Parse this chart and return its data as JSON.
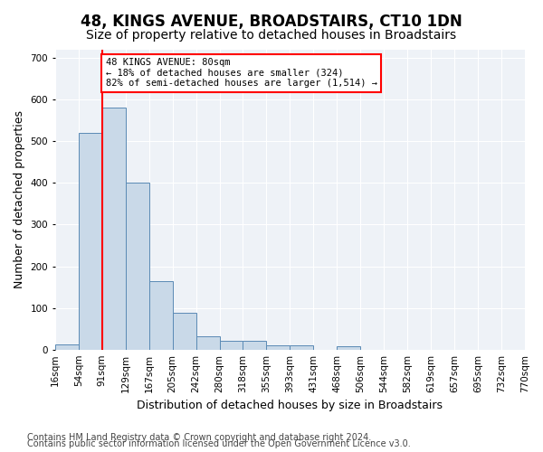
{
  "title": "48, KINGS AVENUE, BROADSTAIRS, CT10 1DN",
  "subtitle": "Size of property relative to detached houses in Broadstairs",
  "xlabel": "Distribution of detached houses by size in Broadstairs",
  "ylabel": "Number of detached properties",
  "bin_labels": [
    "16sqm",
    "54sqm",
    "91sqm",
    "129sqm",
    "167sqm",
    "205sqm",
    "242sqm",
    "280sqm",
    "318sqm",
    "355sqm",
    "393sqm",
    "431sqm",
    "468sqm",
    "506sqm",
    "544sqm",
    "582sqm",
    "619sqm",
    "657sqm",
    "695sqm",
    "732sqm",
    "770sqm"
  ],
  "bar_values": [
    13,
    520,
    580,
    400,
    165,
    88,
    32,
    20,
    20,
    10,
    11,
    0,
    8,
    0,
    0,
    0,
    0,
    0,
    0,
    0
  ],
  "bar_color": "#c9d9e8",
  "bar_edge_color": "#5a8ab5",
  "annotation_text": "48 KINGS AVENUE: 80sqm\n← 18% of detached houses are smaller (324)\n82% of semi-detached houses are larger (1,514) →",
  "annotation_box_color": "white",
  "annotation_box_edge": "red",
  "vline_color": "red",
  "vline_x": 2.0,
  "ylim": [
    0,
    720
  ],
  "yticks": [
    0,
    100,
    200,
    300,
    400,
    500,
    600,
    700
  ],
  "footer_line1": "Contains HM Land Registry data © Crown copyright and database right 2024.",
  "footer_line2": "Contains public sector information licensed under the Open Government Licence v3.0.",
  "bg_color": "#eef2f7",
  "grid_color": "white",
  "title_fontsize": 12,
  "subtitle_fontsize": 10,
  "axis_label_fontsize": 9,
  "tick_fontsize": 7.5,
  "footer_fontsize": 7
}
